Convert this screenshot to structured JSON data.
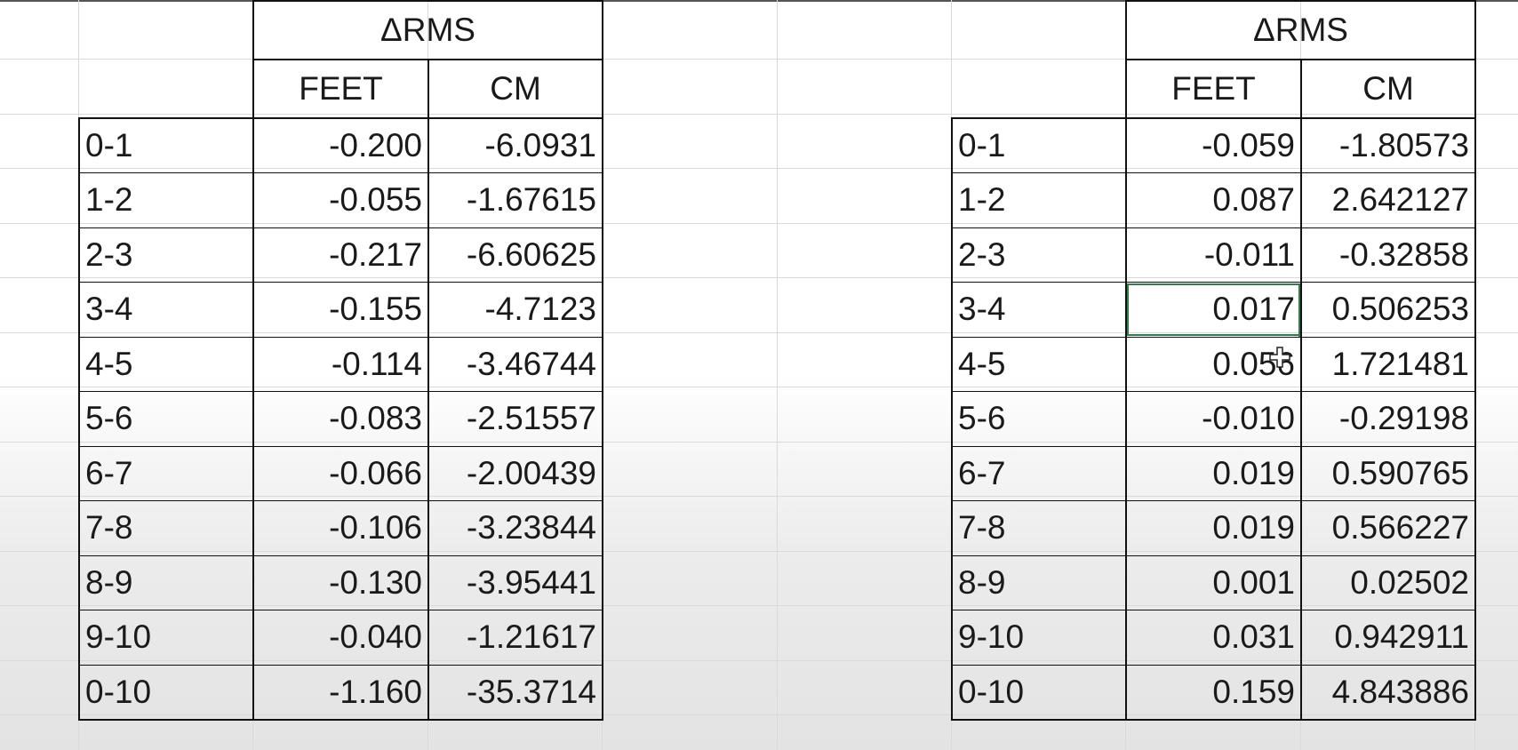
{
  "left_table": {
    "header": "ΔRMS",
    "units": {
      "feet": "FEET",
      "cm": "CM"
    },
    "rows": [
      {
        "label": "0-1",
        "feet": "-0.200",
        "cm": "-6.0931"
      },
      {
        "label": "1-2",
        "feet": "-0.055",
        "cm": "-1.67615"
      },
      {
        "label": "2-3",
        "feet": "-0.217",
        "cm": "-6.60625"
      },
      {
        "label": "3-4",
        "feet": "-0.155",
        "cm": "-4.7123"
      },
      {
        "label": "4-5",
        "feet": "-0.114",
        "cm": "-3.46744"
      },
      {
        "label": "5-6",
        "feet": "-0.083",
        "cm": "-2.51557"
      },
      {
        "label": "6-7",
        "feet": "-0.066",
        "cm": "-2.00439"
      },
      {
        "label": "7-8",
        "feet": "-0.106",
        "cm": "-3.23844"
      },
      {
        "label": "8-9",
        "feet": "-0.130",
        "cm": "-3.95441"
      },
      {
        "label": "9-10",
        "feet": "-0.040",
        "cm": "-1.21617"
      },
      {
        "label": "0-10",
        "feet": "-1.160",
        "cm": "-35.3714"
      }
    ]
  },
  "right_table": {
    "header": "ΔRMS",
    "units": {
      "feet": "FEET",
      "cm": "CM"
    },
    "rows": [
      {
        "label": "0-1",
        "feet": "-0.059",
        "cm": "-1.80573"
      },
      {
        "label": "1-2",
        "feet": "0.087",
        "cm": "2.642127"
      },
      {
        "label": "2-3",
        "feet": "-0.011",
        "cm": "-0.32858"
      },
      {
        "label": "3-4",
        "feet": "0.017",
        "cm": "0.506253"
      },
      {
        "label": "4-5",
        "feet": "0.056",
        "cm": "1.721481"
      },
      {
        "label": "5-6",
        "feet": "-0.010",
        "cm": "-0.29198"
      },
      {
        "label": "6-7",
        "feet": "0.019",
        "cm": "0.590765"
      },
      {
        "label": "7-8",
        "feet": "0.019",
        "cm": "0.566227"
      },
      {
        "label": "8-9",
        "feet": "0.001",
        "cm": "0.02502"
      },
      {
        "label": "9-10",
        "feet": "0.031",
        "cm": "0.942911"
      },
      {
        "label": "0-10",
        "feet": "0.159",
        "cm": "4.843886"
      }
    ]
  },
  "selection": {
    "table": "right_table",
    "row_label": "3-4",
    "column": "FEET"
  },
  "colors": {
    "border": "#111111",
    "text": "#1a1a1a",
    "gridline": "#dadada",
    "selection": "#2f7d4a"
  },
  "icons": {
    "cursor": "plus-cursor-icon"
  }
}
